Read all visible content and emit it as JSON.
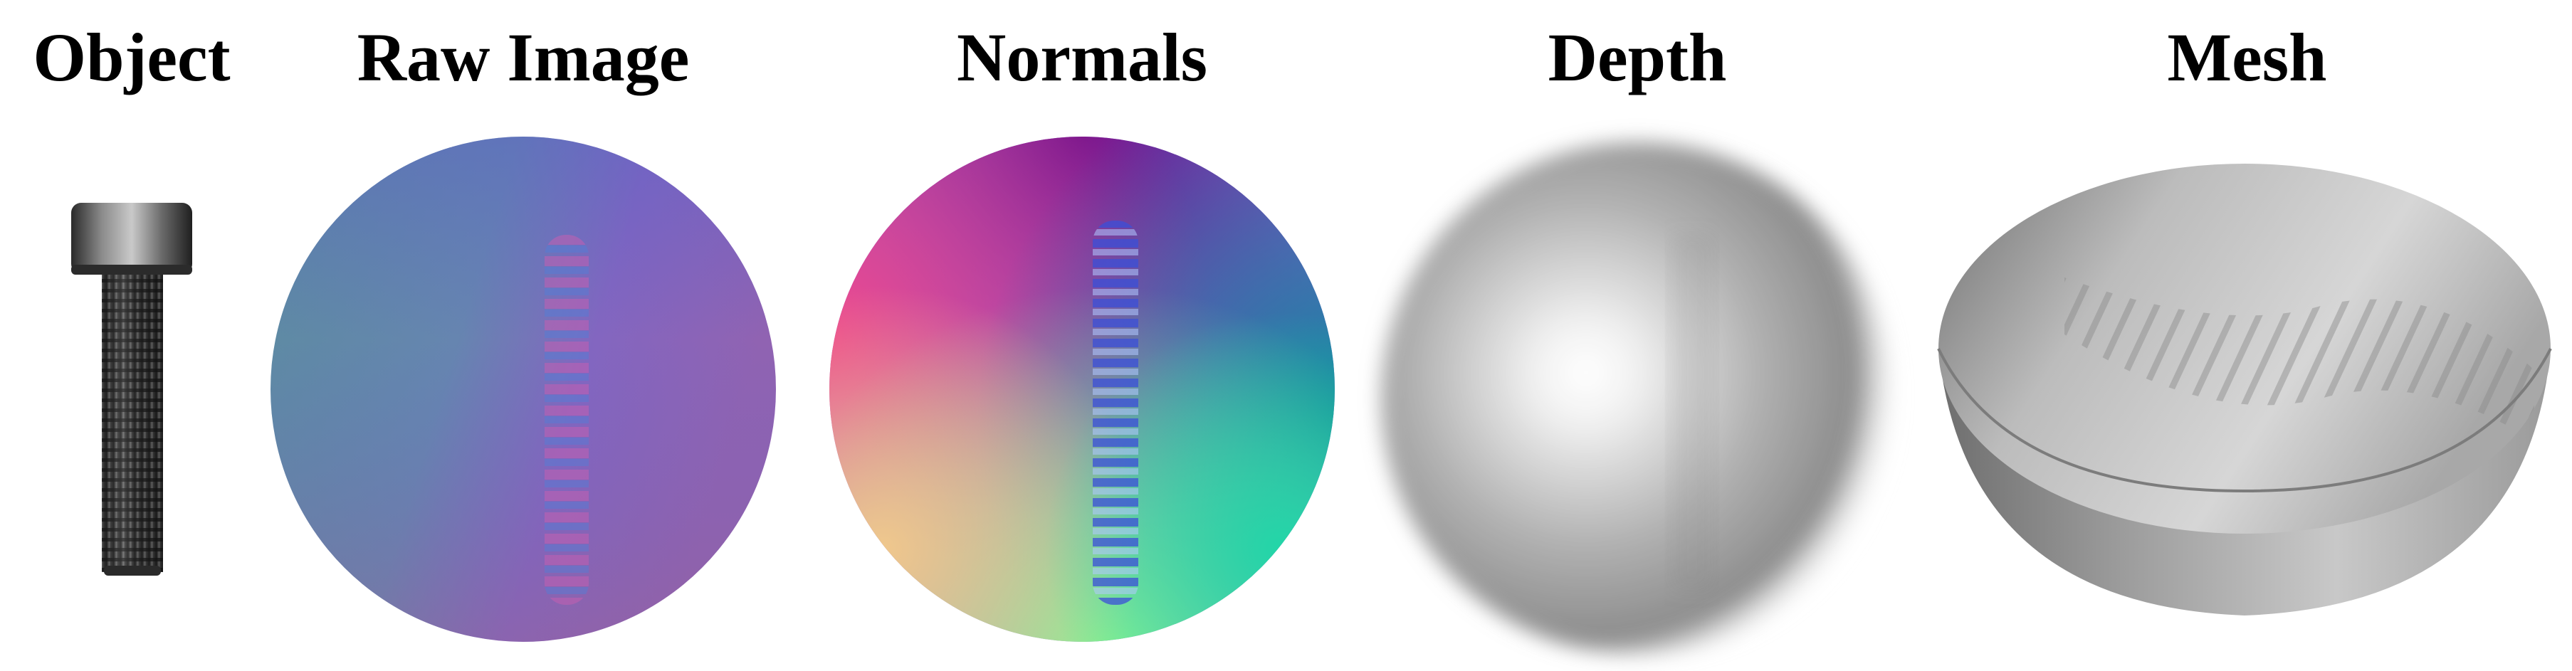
{
  "figure": {
    "panels": [
      {
        "title": "Object",
        "content": "hex-socket-cap-screw-photo"
      },
      {
        "title": "Raw Image",
        "content": "gelsight-raw-tactile-image"
      },
      {
        "title": "Normals",
        "content": "surface-normal-map"
      },
      {
        "title": "Depth",
        "content": "depth-map"
      },
      {
        "title": "Mesh",
        "content": "reconstructed-hemisphere-mesh"
      }
    ],
    "colors": {
      "raw_left": "#5d8aa2",
      "raw_right": "#8f63b8",
      "normals_top": "#7a1a9a",
      "normals_left": "#e8408a",
      "normals_right": "#1fa6a6",
      "normals_bottom": "#7cf59a",
      "mesh_gray": "#bdbdbd"
    }
  }
}
